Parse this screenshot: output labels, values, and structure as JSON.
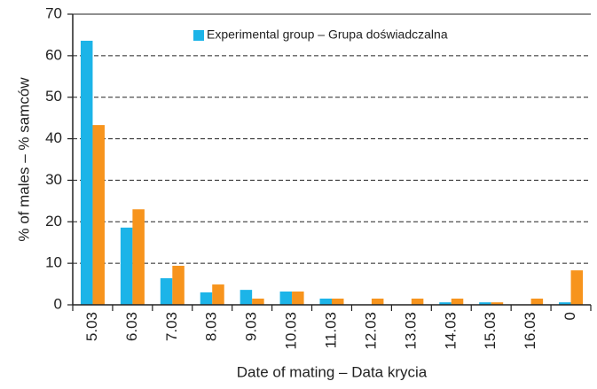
{
  "chart_data": {
    "type": "bar",
    "categories": [
      "5.03",
      "6.03",
      "7.03",
      "8.03",
      "9.03",
      "10.03",
      "11.03",
      "12.03",
      "13.03",
      "14.03",
      "15.03",
      "16.03",
      "0"
    ],
    "series": [
      {
        "name": "Experimental group – Grupa doświadczalna",
        "color": "#1cb4e8",
        "values": [
          63.6,
          18.6,
          6.4,
          3.0,
          3.6,
          3.2,
          1.5,
          0,
          0,
          0.6,
          0.6,
          0,
          0.6
        ]
      },
      {
        "color": "#f7941d",
        "values": [
          43.3,
          23.0,
          9.4,
          4.9,
          1.5,
          3.2,
          1.5,
          1.5,
          1.5,
          1.5,
          0.6,
          1.5,
          8.3
        ]
      }
    ],
    "ylabel": "% of males – % samców",
    "xlabel": "Date of mating – Data krycia",
    "ylim": [
      0,
      70
    ],
    "yticks": [
      0,
      10,
      20,
      30,
      40,
      50,
      60,
      70
    ],
    "grid": true
  }
}
